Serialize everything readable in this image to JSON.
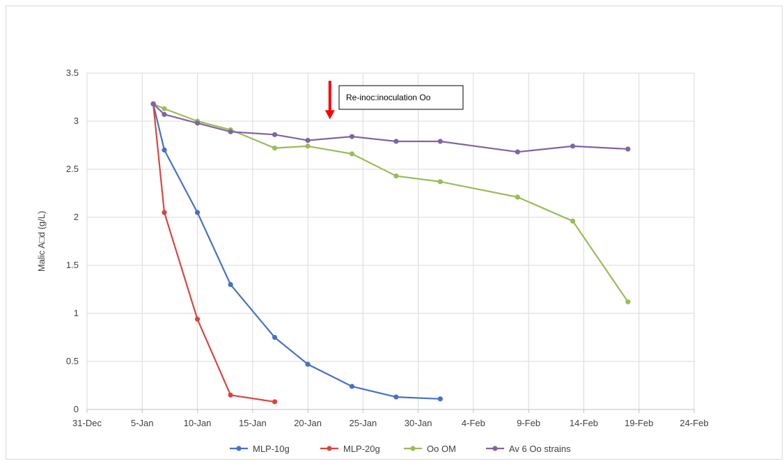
{
  "chart_data": {
    "type": "line",
    "title": "",
    "xlabel": "",
    "ylabel": "Malic A□d (g/L)",
    "x_axis": {
      "type": "date",
      "min": "2016-12-31",
      "max": "2017-02-24",
      "tick_labels": [
        "31-Dec",
        "5-Jan",
        "10-Jan",
        "15-Jan",
        "20-Jan",
        "25-Jan",
        "30-Jan",
        "4-Feb",
        "9-Feb",
        "14-Feb",
        "19-Feb",
        "24-Feb"
      ]
    },
    "y_axis": {
      "min": 0,
      "max": 3.5,
      "tick_labels": [
        "0",
        "0.5",
        "1",
        "1.5",
        "2",
        "2.5",
        "3",
        "3.5"
      ]
    },
    "grid": true,
    "legend_position": "bottom",
    "series": [
      {
        "name": "MLP-10g",
        "color": "#4472c4",
        "points": [
          [
            "2017-01-06",
            3.18
          ],
          [
            "2017-01-07",
            2.7
          ],
          [
            "2017-01-10",
            2.05
          ],
          [
            "2017-01-13",
            1.3
          ],
          [
            "2017-01-17",
            0.75
          ],
          [
            "2017-01-20",
            0.47
          ],
          [
            "2017-01-24",
            0.24
          ],
          [
            "2017-01-28",
            0.13
          ],
          [
            "2017-02-01",
            0.11
          ]
        ]
      },
      {
        "name": "MLP-20g",
        "color": "#d9453d",
        "points": [
          [
            "2017-01-06",
            3.18
          ],
          [
            "2017-01-07",
            2.05
          ],
          [
            "2017-01-10",
            0.94
          ],
          [
            "2017-01-13",
            0.15
          ],
          [
            "2017-01-17",
            0.08
          ]
        ]
      },
      {
        "name": "Oo OM",
        "color": "#9bbb59",
        "points": [
          [
            "2017-01-06",
            3.18
          ],
          [
            "2017-01-07",
            3.13
          ],
          [
            "2017-01-10",
            3.0
          ],
          [
            "2017-01-13",
            2.91
          ],
          [
            "2017-01-17",
            2.72
          ],
          [
            "2017-01-20",
            2.74
          ],
          [
            "2017-01-24",
            2.66
          ],
          [
            "2017-01-28",
            2.43
          ],
          [
            "2017-02-01",
            2.37
          ],
          [
            "2017-02-08",
            2.21
          ],
          [
            "2017-02-13",
            1.96
          ],
          [
            "2017-02-18",
            1.12
          ]
        ]
      },
      {
        "name": "Av 6 Oo strains",
        "color": "#8064a2",
        "points": [
          [
            "2017-01-06",
            3.18
          ],
          [
            "2017-01-07",
            3.07
          ],
          [
            "2017-01-10",
            2.98
          ],
          [
            "2017-01-13",
            2.89
          ],
          [
            "2017-01-17",
            2.86
          ],
          [
            "2017-01-20",
            2.8
          ],
          [
            "2017-01-24",
            2.84
          ],
          [
            "2017-01-28",
            2.79
          ],
          [
            "2017-02-01",
            2.79
          ],
          [
            "2017-02-08",
            2.68
          ],
          [
            "2017-02-13",
            2.74
          ],
          [
            "2017-02-18",
            2.71
          ]
        ]
      }
    ],
    "annotations": [
      {
        "text": "Re-inoc:inoculation Oo",
        "arrow_color": "#ff0000",
        "arrow_x": "2017-01-22",
        "arrow_y_top": 3.42,
        "arrow_y_bottom": 3.02
      }
    ]
  }
}
